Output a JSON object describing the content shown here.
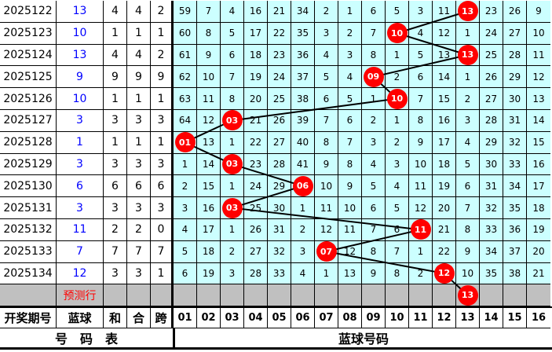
{
  "rows": [
    {
      "period": "2025122",
      "blue": "13",
      "sum": "4",
      "he": "4",
      "span": "2",
      "cells": [
        "59",
        "7",
        "4",
        "16",
        "21",
        "34",
        "2",
        "1",
        "6",
        "5",
        "3",
        "11",
        "13",
        "23",
        "26",
        "9"
      ],
      "hit": 13
    },
    {
      "period": "2025123",
      "blue": "10",
      "sum": "1",
      "he": "1",
      "span": "1",
      "cells": [
        "60",
        "8",
        "5",
        "17",
        "22",
        "35",
        "3",
        "2",
        "7",
        "10",
        "4",
        "12",
        "1",
        "24",
        "27",
        "10"
      ],
      "hit": 10
    },
    {
      "period": "2025124",
      "blue": "13",
      "sum": "4",
      "he": "4",
      "span": "2",
      "cells": [
        "61",
        "9",
        "6",
        "18",
        "23",
        "36",
        "4",
        "3",
        "8",
        "1",
        "5",
        "13",
        "13",
        "25",
        "28",
        "11"
      ],
      "hit": 13
    },
    {
      "period": "2025125",
      "blue": "9",
      "sum": "9",
      "he": "9",
      "span": "9",
      "cells": [
        "62",
        "10",
        "7",
        "19",
        "24",
        "37",
        "5",
        "4",
        "09",
        "2",
        "6",
        "14",
        "1",
        "26",
        "29",
        "12"
      ],
      "hit": 9
    },
    {
      "period": "2025126",
      "blue": "10",
      "sum": "1",
      "he": "1",
      "span": "1",
      "cells": [
        "63",
        "11",
        "8",
        "20",
        "25",
        "38",
        "6",
        "5",
        "1",
        "10",
        "7",
        "15",
        "2",
        "27",
        "30",
        "13"
      ],
      "hit": 10
    },
    {
      "period": "2025127",
      "blue": "3",
      "sum": "3",
      "he": "3",
      "span": "3",
      "cells": [
        "64",
        "12",
        "03",
        "21",
        "26",
        "39",
        "7",
        "6",
        "2",
        "1",
        "8",
        "16",
        "3",
        "28",
        "31",
        "14"
      ],
      "hit": 3
    },
    {
      "period": "2025128",
      "blue": "1",
      "sum": "1",
      "he": "1",
      "span": "1",
      "cells": [
        "01",
        "13",
        "1",
        "22",
        "27",
        "40",
        "8",
        "7",
        "3",
        "2",
        "9",
        "17",
        "4",
        "29",
        "32",
        "15"
      ],
      "hit": 1
    },
    {
      "period": "2025129",
      "blue": "3",
      "sum": "3",
      "he": "3",
      "span": "3",
      "cells": [
        "1",
        "14",
        "03",
        "23",
        "28",
        "41",
        "9",
        "8",
        "4",
        "3",
        "10",
        "18",
        "5",
        "30",
        "33",
        "16"
      ],
      "hit": 3
    },
    {
      "period": "2025130",
      "blue": "6",
      "sum": "6",
      "he": "6",
      "span": "6",
      "cells": [
        "2",
        "15",
        "1",
        "24",
        "29",
        "06",
        "10",
        "9",
        "5",
        "4",
        "11",
        "19",
        "6",
        "31",
        "34",
        "17"
      ],
      "hit": 6
    },
    {
      "period": "2025131",
      "blue": "3",
      "sum": "3",
      "he": "3",
      "span": "3",
      "cells": [
        "3",
        "16",
        "03",
        "25",
        "30",
        "1",
        "11",
        "10",
        "6",
        "5",
        "12",
        "20",
        "7",
        "32",
        "35",
        "18"
      ],
      "hit": 3
    },
    {
      "period": "2025132",
      "blue": "11",
      "sum": "2",
      "he": "2",
      "span": "0",
      "cells": [
        "4",
        "17",
        "1",
        "26",
        "31",
        "2",
        "12",
        "11",
        "7",
        "6",
        "11",
        "21",
        "8",
        "33",
        "36",
        "19"
      ],
      "hit": 11
    },
    {
      "period": "2025133",
      "blue": "7",
      "sum": "7",
      "he": "7",
      "span": "7",
      "cells": [
        "5",
        "18",
        "2",
        "27",
        "32",
        "3",
        "07",
        "12",
        "8",
        "7",
        "1",
        "22",
        "9",
        "34",
        "37",
        "20"
      ],
      "hit": 7
    },
    {
      "period": "2025134",
      "blue": "12",
      "sum": "3",
      "he": "3",
      "span": "1",
      "cells": [
        "6",
        "19",
        "3",
        "28",
        "33",
        "4",
        "1",
        "13",
        "9",
        "8",
        "2",
        "12",
        "10",
        "35",
        "38",
        "21"
      ],
      "hit": 12
    }
  ],
  "prediction": {
    "label": "预测行",
    "ball": "13",
    "hit": 13
  },
  "header": {
    "period": "开奖期号",
    "blue": "蓝球",
    "sum": "和",
    "he": "合",
    "span": "跨",
    "numbers": [
      "01",
      "02",
      "03",
      "04",
      "05",
      "06",
      "07",
      "08",
      "09",
      "10",
      "11",
      "12",
      "13",
      "14",
      "15",
      "16"
    ]
  },
  "footer": {
    "left": "号　码　表",
    "right": "蓝球号码"
  },
  "colors": {
    "grid": "#ccffff",
    "ball": "#ff0000",
    "blue_text": "#0000ff",
    "pred_row": "#c0c0c0"
  }
}
